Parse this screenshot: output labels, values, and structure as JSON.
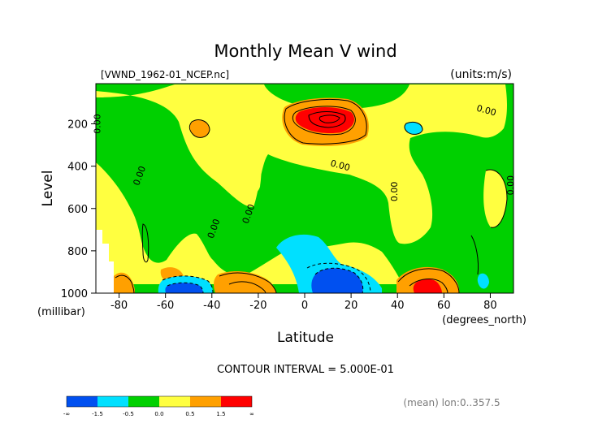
{
  "chart_data": {
    "type": "contour",
    "title": "Monthly Mean V wind",
    "file_label": "[VWND_1962-01_NCEP.nc]",
    "units_label": "(units:m/s)",
    "xlabel": "Latitude",
    "x_unit": "(degrees_north)",
    "ylabel": "Level",
    "y_unit": "(millibar)",
    "xlim": [
      -90,
      90
    ],
    "ylim": [
      1000,
      10
    ],
    "x_ticks": [
      -80,
      -60,
      -40,
      -20,
      0,
      20,
      40,
      60,
      80
    ],
    "y_ticks": [
      200,
      400,
      600,
      800,
      1000
    ],
    "contour_interval_text": "CONTOUR INTERVAL = 5.000E-01",
    "contour_labels": [
      {
        "text": "0.00",
        "x": 78,
        "y": 150
      },
      {
        "text": "0.00",
        "x": -88,
        "y": 200
      },
      {
        "text": "0.00",
        "x": -70,
        "y": 450
      },
      {
        "text": "0.00",
        "x": 15,
        "y": 410
      },
      {
        "text": "0.00",
        "x": 40,
        "y": 520
      },
      {
        "text": "0.00",
        "x": 90,
        "y": 490
      },
      {
        "text": "0.00",
        "x": -38,
        "y": 700
      },
      {
        "text": "0.00",
        "x": -23,
        "y": 630
      }
    ],
    "colorbar": {
      "colors": [
        "#0050f0",
        "#00e0ff",
        "#00d000",
        "#ffff40",
        "#ffa000",
        "#ff0000"
      ],
      "labels": [
        "-∞",
        "-1.5",
        "-0.5",
        "0.0",
        "0.5",
        "1.5",
        "∞"
      ]
    },
    "note": "(mean) lon:0..357.5"
  }
}
